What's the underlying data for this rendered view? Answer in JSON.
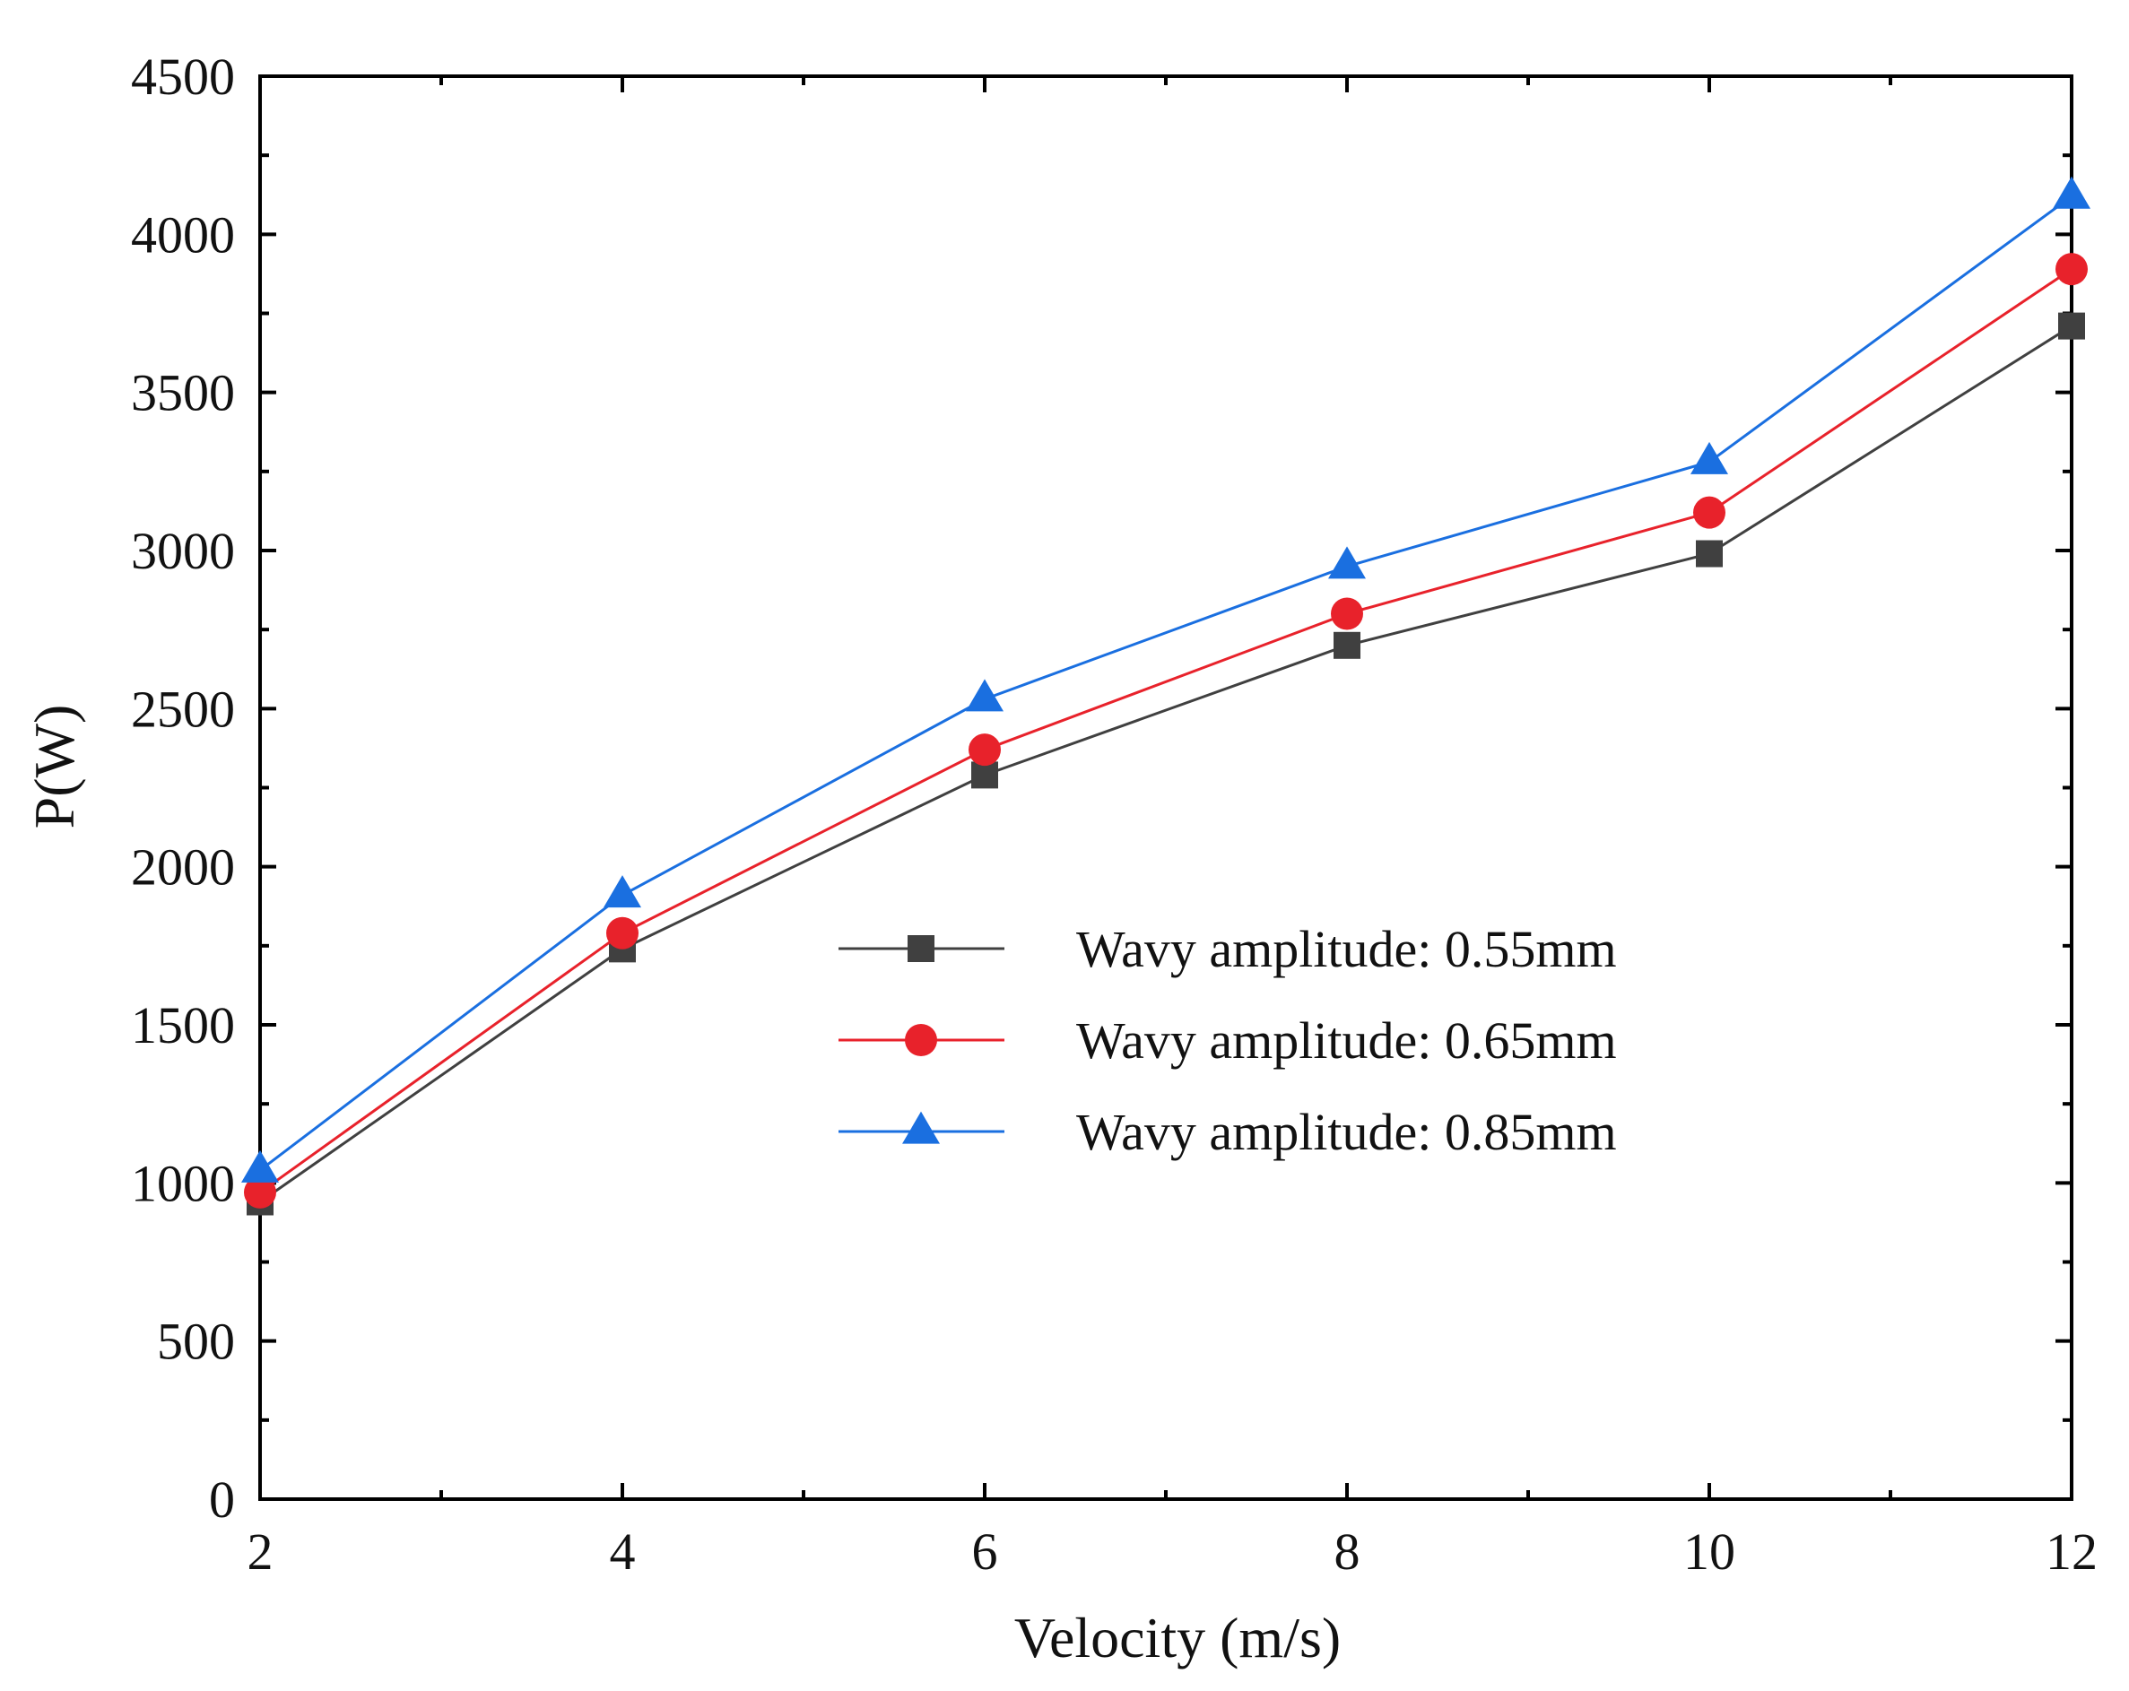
{
  "chart_data": {
    "type": "line",
    "title": "",
    "xlabel": "Velocity (m/s)",
    "ylabel": "P(W)",
    "xlim": [
      2,
      12
    ],
    "ylim": [
      0,
      4500
    ],
    "x_ticks": [
      2,
      4,
      6,
      8,
      10,
      12
    ],
    "x_minor_ticks": [
      3,
      5,
      7,
      9,
      11
    ],
    "y_ticks": [
      0,
      500,
      1000,
      1500,
      2000,
      2500,
      3000,
      3500,
      4000,
      4500
    ],
    "y_minor_ticks": [
      250,
      750,
      1250,
      1750,
      2250,
      2750,
      3250,
      3750,
      4250
    ],
    "grid": false,
    "legend_position": "center-right",
    "x": [
      2,
      4,
      6,
      8,
      10,
      12
    ],
    "series": [
      {
        "name": "Wavy amplitude: 0.55mm",
        "marker": "square",
        "color": "#404040",
        "values": [
          940,
          1740,
          2290,
          2700,
          2990,
          3710
        ]
      },
      {
        "name": "Wavy amplitude: 0.65mm",
        "marker": "circle",
        "color": "#e8222b",
        "values": [
          970,
          1790,
          2370,
          2800,
          3120,
          3890
        ]
      },
      {
        "name": "Wavy amplitude: 0.85mm",
        "marker": "triangle",
        "color": "#1a6fe0",
        "values": [
          1040,
          1910,
          2530,
          2950,
          3280,
          4120
        ]
      }
    ]
  }
}
